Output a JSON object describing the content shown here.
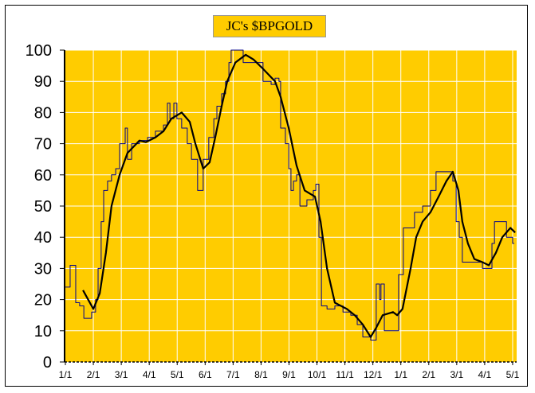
{
  "chart_data": {
    "type": "line",
    "title": "JC's $BPGOLD",
    "xlabel": "",
    "ylabel": "",
    "ylim": [
      0,
      100
    ],
    "yticks": [
      0,
      10,
      20,
      30,
      40,
      50,
      60,
      70,
      80,
      90,
      100
    ],
    "x_units": "months since first 1/1",
    "xlim": [
      0,
      16.15
    ],
    "xtick_labels": [
      "1/1",
      "2/1",
      "3/1",
      "4/1",
      "5/1",
      "6/1",
      "7/1",
      "8/1",
      "9/1",
      "10/1",
      "11/1",
      "12/1",
      "1/1",
      "2/1",
      "3/1",
      "4/1",
      "5/1"
    ],
    "grid": true,
    "colors": {
      "background": "#FFCC00",
      "grid": "#FFFFFF",
      "raw": "#00008B",
      "smooth": "#000000"
    },
    "series": [
      {
        "name": "BPGOLD",
        "style": "step",
        "x": [
          0,
          0.17,
          0.29,
          0.37,
          0.51,
          0.66,
          0.86,
          0.94,
          1.08,
          1.17,
          1.28,
          1.37,
          1.51,
          1.65,
          1.8,
          1.94,
          2.14,
          2.22,
          2.37,
          2.65,
          2.94,
          3.22,
          3.51,
          3.65,
          3.74,
          3.88,
          3.99,
          4.16,
          4.36,
          4.51,
          4.73,
          4.88,
          4.93,
          5.13,
          5.31,
          5.42,
          5.59,
          5.73,
          5.85,
          5.93,
          6.27,
          6.36,
          6.93,
          7.07,
          7.36,
          7.5,
          7.64,
          7.7,
          7.87,
          7.99,
          8.07,
          8.16,
          8.27,
          8.39,
          8.64,
          8.87,
          8.96,
          9.07,
          9.16,
          9.36,
          9.64,
          9.93,
          10.21,
          10.44,
          10.64,
          10.92,
          11.12,
          11.24,
          11.29,
          11.41,
          11.78,
          11.92,
          12.09,
          12.35,
          12.49,
          12.78,
          13.06,
          13.26,
          13.78,
          13.86,
          13.98,
          14.09,
          14.2,
          14.77,
          14.92,
          15.12,
          15.26,
          15.35,
          15.63,
          15.78,
          15.92,
          16.0,
          16.06
        ],
        "y": [
          24,
          31,
          31,
          19,
          18,
          14,
          14,
          16,
          20,
          30,
          45,
          55,
          58,
          60,
          62,
          70,
          75,
          65,
          70,
          71,
          72,
          74,
          76,
          83,
          78,
          83,
          78,
          75,
          70,
          65,
          55,
          55,
          65,
          72,
          78,
          82,
          86,
          90,
          96,
          100,
          100,
          96,
          96,
          90,
          89,
          91,
          90,
          75,
          70,
          62,
          55,
          58,
          60,
          50,
          52,
          55,
          57,
          40,
          18,
          17,
          18,
          16,
          15,
          12,
          8,
          7,
          25,
          20,
          25,
          10,
          10,
          28,
          43,
          43,
          48,
          50,
          55,
          61,
          61,
          58,
          45,
          40,
          32,
          32,
          30,
          30,
          38,
          45,
          45,
          40,
          40,
          38,
          38
        ]
      },
      {
        "name": "Moving average",
        "style": "smooth",
        "x": [
          0.63,
          1.0,
          1.23,
          1.45,
          1.65,
          1.94,
          2.22,
          2.65,
          2.88,
          3.22,
          3.51,
          3.79,
          4.16,
          4.45,
          4.65,
          4.93,
          5.16,
          5.36,
          5.59,
          5.79,
          6.08,
          6.45,
          6.73,
          7.07,
          7.5,
          7.7,
          7.99,
          8.27,
          8.56,
          8.93,
          9.13,
          9.36,
          9.64,
          10.07,
          10.35,
          10.64,
          10.92,
          11.12,
          11.35,
          11.72,
          11.87,
          12.06,
          12.35,
          12.55,
          12.78,
          13.06,
          13.35,
          13.63,
          13.86,
          14.06,
          14.2,
          14.4,
          14.63,
          14.92,
          15.15,
          15.4,
          15.63,
          15.92,
          16.09
        ],
        "y": [
          23,
          17,
          22,
          35,
          50,
          60,
          67,
          71,
          70.5,
          72,
          74,
          78,
          80,
          77,
          70,
          62,
          64,
          72,
          82,
          90,
          96,
          98.5,
          97,
          94,
          90,
          85,
          75,
          63,
          55,
          53,
          45,
          30,
          19,
          17,
          15,
          12,
          8,
          11,
          15,
          16,
          15,
          17,
          30,
          40,
          45,
          48,
          53,
          58,
          61,
          55,
          45,
          38,
          33,
          32,
          31,
          35,
          40,
          43,
          41.5
        ]
      }
    ]
  }
}
